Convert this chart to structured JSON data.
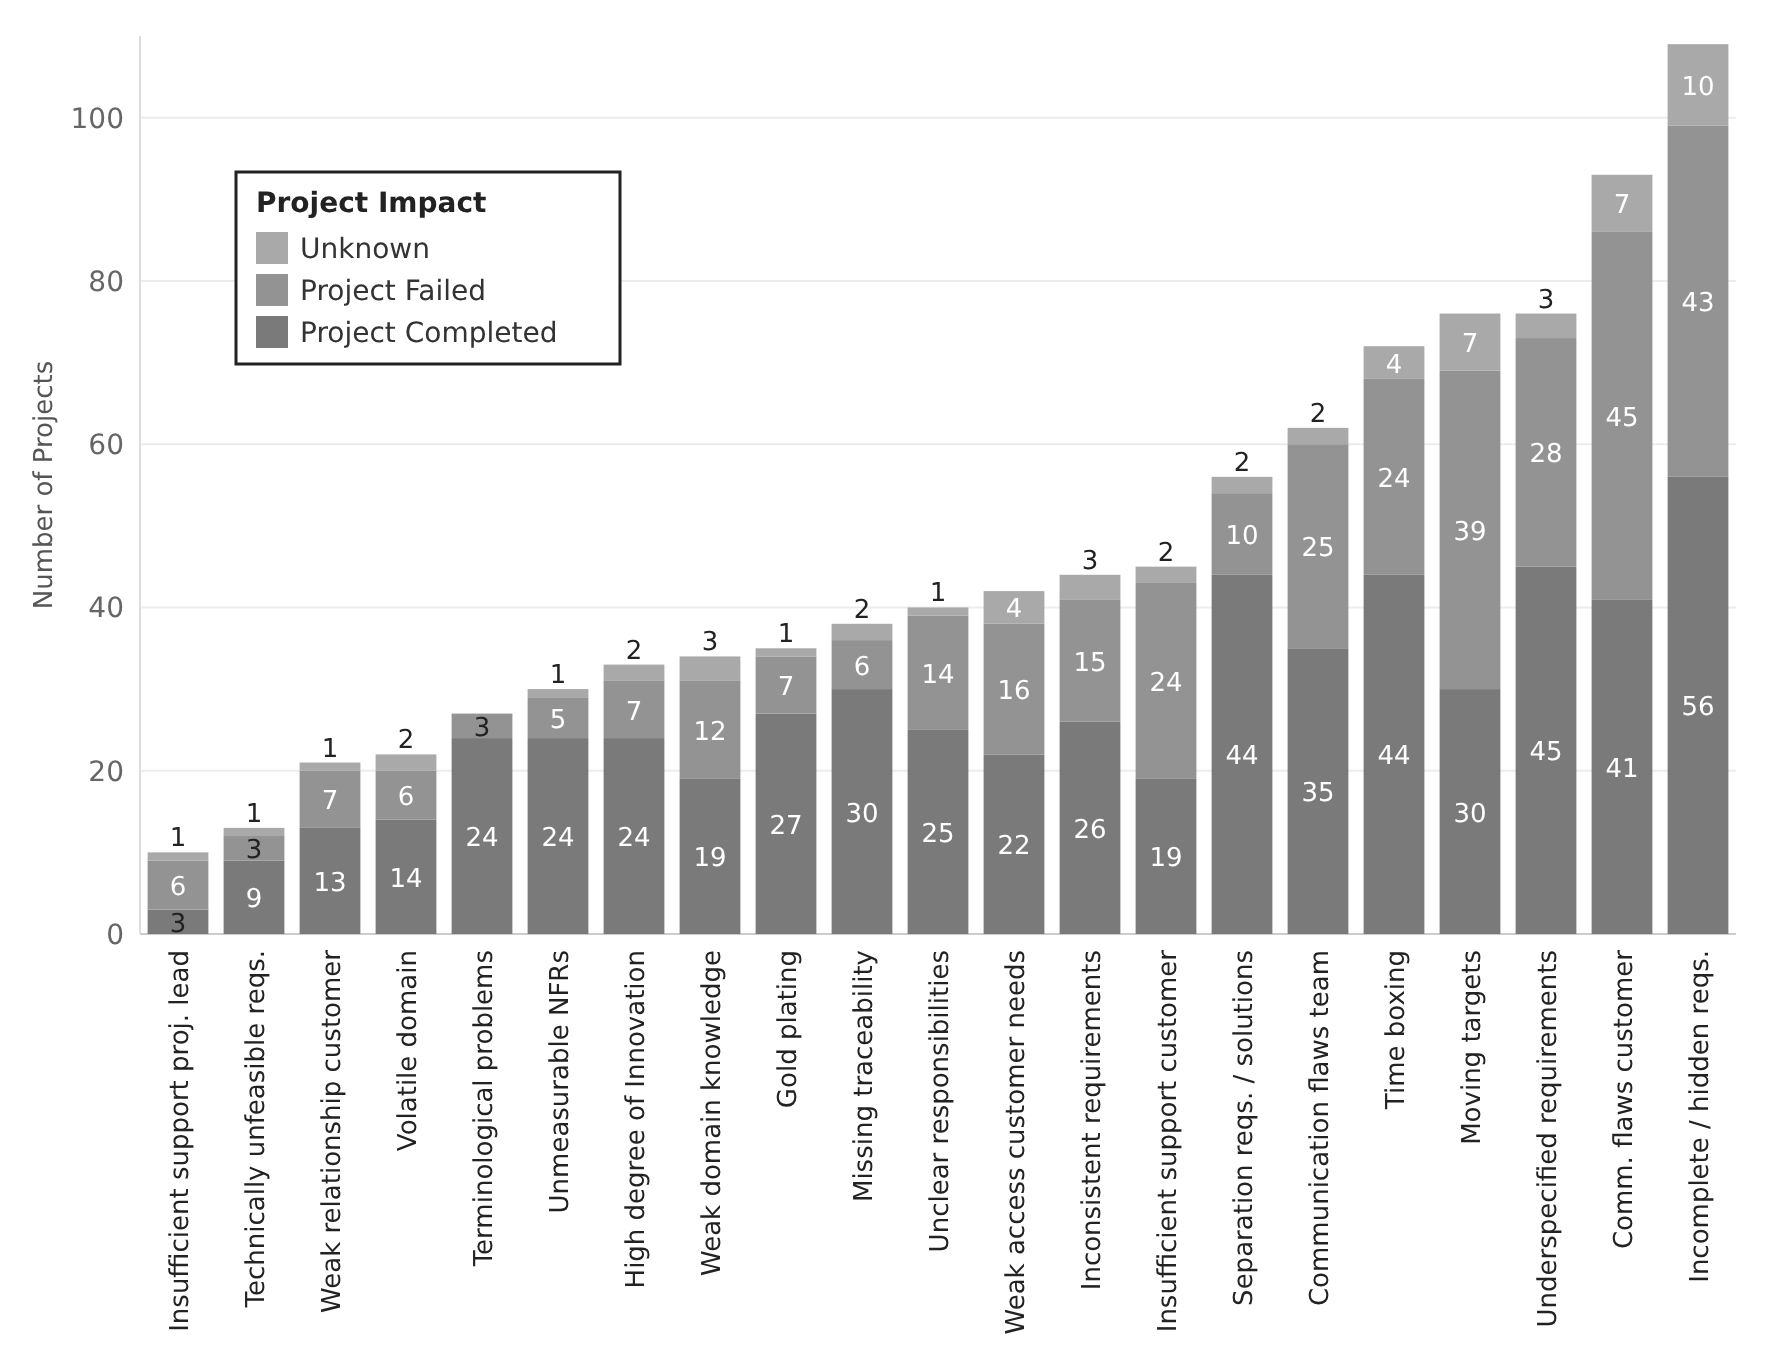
{
  "chart_data": {
    "type": "bar",
    "stacked": true,
    "ylabel": "Number of Projects",
    "legend_title": "Project Impact",
    "legend": "top left",
    "grid": "y",
    "data_labels": true,
    "categories": [
      "Insufficient support proj. lead",
      "Technically unfeasible reqs.",
      "Weak relationship customer",
      "Volatile domain",
      "Terminological problems",
      "Unmeasurable NFRs",
      "High degree of Innovation",
      "Weak domain knowledge",
      "Gold plating",
      "Missing traceability",
      "Unclear responsibilities",
      "Weak access customer needs",
      "Inconsistent requirements",
      "Insufficient support customer",
      "Separation reqs. / solutions",
      "Communication flaws team",
      "Time boxing",
      "Moving targets",
      "Underspecified requirements",
      "Comm. flaws customer",
      "Incomplete / hidden reqs."
    ],
    "series": [
      {
        "name": "Project Completed",
        "color": "#7a7a7a",
        "values": [
          3,
          9,
          13,
          14,
          24,
          24,
          24,
          19,
          27,
          30,
          25,
          22,
          26,
          19,
          44,
          35,
          44,
          30,
          45,
          41,
          56
        ]
      },
      {
        "name": "Project Failed",
        "color": "#939393",
        "values": [
          6,
          3,
          7,
          6,
          3,
          5,
          7,
          12,
          7,
          6,
          14,
          16,
          15,
          24,
          10,
          25,
          24,
          39,
          28,
          45,
          43
        ]
      },
      {
        "name": "Unknown",
        "color": "#a9a9a9",
        "values": [
          1,
          1,
          1,
          2,
          null,
          1,
          2,
          3,
          1,
          2,
          1,
          4,
          3,
          2,
          2,
          2,
          4,
          7,
          3,
          7,
          10
        ]
      }
    ],
    "ylim": [
      0,
      110
    ],
    "yticks": [
      0,
      20,
      40,
      60,
      80,
      100
    ]
  }
}
